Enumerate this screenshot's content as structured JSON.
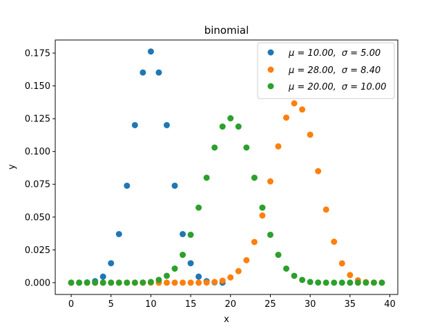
{
  "chart_data": {
    "type": "scatter",
    "title": "binomial",
    "xlabel": "x",
    "ylabel": "y",
    "xlim": [
      -2,
      41
    ],
    "ylim": [
      -0.009,
      0.185
    ],
    "xticks": [
      0,
      5,
      10,
      15,
      20,
      25,
      30,
      35,
      40
    ],
    "yticks": [
      0.0,
      0.025,
      0.05,
      0.075,
      0.1,
      0.125,
      0.15,
      0.175
    ],
    "xtick_labels": [
      "0",
      "5",
      "10",
      "15",
      "20",
      "25",
      "30",
      "35",
      "40"
    ],
    "ytick_labels": [
      "0.000",
      "0.025",
      "0.050",
      "0.075",
      "0.100",
      "0.125",
      "0.150",
      "0.175"
    ],
    "grid": false,
    "legend_position": "top-right",
    "x": [
      0,
      1,
      2,
      3,
      4,
      5,
      6,
      7,
      8,
      9,
      10,
      11,
      12,
      13,
      14,
      15,
      16,
      17,
      18,
      19,
      20,
      21,
      22,
      23,
      24,
      25,
      26,
      27,
      28,
      29,
      30,
      31,
      32,
      33,
      34,
      35,
      36,
      37,
      38,
      39
    ],
    "series": [
      {
        "name": "μ = 10.00,  σ = 5.00",
        "color": "#1f77b4",
        "values": [
          0.0,
          0.0,
          0.0002,
          0.0011,
          0.0046,
          0.0148,
          0.037,
          0.0739,
          0.1201,
          0.1602,
          0.1762,
          0.1602,
          0.1201,
          0.0739,
          0.037,
          0.0148,
          0.0046,
          0.0011,
          0.0002,
          0.0
        ]
      },
      {
        "name": "μ = 28.00,  σ = 8.40",
        "color": "#ff7f0e",
        "values": [
          0.0,
          0.0,
          0.0,
          0.0,
          0.0,
          0.0,
          0.0,
          0.0,
          0.0,
          0.0,
          0.0,
          0.0,
          0.0,
          0.0,
          0.0,
          0.0,
          0.0,
          0.0001,
          0.0005,
          0.0015,
          0.004,
          0.0088,
          0.0171,
          0.031,
          0.0512,
          0.0772,
          0.1039,
          0.1258,
          0.1367,
          0.132,
          0.1128,
          0.085,
          0.0557,
          0.0312,
          0.0147,
          0.0058,
          0.0018,
          0.0004,
          0.0001,
          0.0
        ]
      },
      {
        "name": "μ = 20.00,  σ = 10.00",
        "color": "#2ca02c",
        "values": [
          0.0,
          0.0,
          0.0,
          0.0,
          0.0,
          0.0,
          0.0,
          0.0,
          0.0,
          0.0001,
          0.0005,
          0.0021,
          0.0052,
          0.0107,
          0.0212,
          0.0365,
          0.0572,
          0.08,
          0.103,
          0.119,
          0.1253,
          0.119,
          0.103,
          0.08,
          0.0572,
          0.0365,
          0.0212,
          0.0107,
          0.0052,
          0.0021,
          0.0005,
          0.0001,
          0.0,
          0.0,
          0.0,
          0.0,
          0.0,
          0.0,
          0.0,
          0.0
        ]
      }
    ]
  },
  "legend": {
    "entries": [
      {
        "mu_label": "μ = 10.00,",
        "sigma_label": "σ = 5.00"
      },
      {
        "mu_label": "μ = 28.00,",
        "sigma_label": "σ = 8.40"
      },
      {
        "mu_label": "μ = 20.00,",
        "sigma_label": "σ = 10.00"
      }
    ]
  }
}
